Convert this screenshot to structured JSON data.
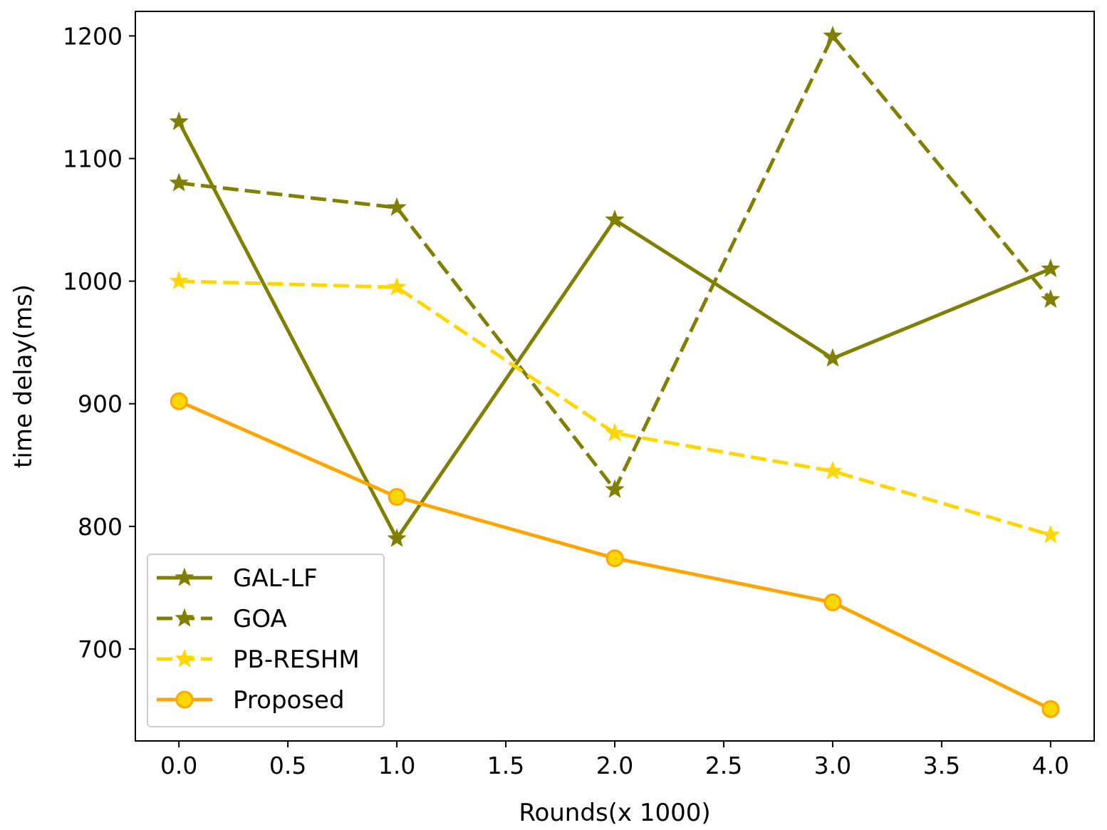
{
  "chart_data": {
    "type": "line",
    "title": "",
    "xlabel": "Rounds(x 1000)",
    "ylabel": "time delay(ms)",
    "xlim": [
      -0.2,
      4.2
    ],
    "ylim": [
      625,
      1220
    ],
    "xticks": [
      0.0,
      0.5,
      1.0,
      1.5,
      2.0,
      2.5,
      3.0,
      3.5,
      4.0
    ],
    "xtick_labels": [
      "0.0",
      "0.5",
      "1.0",
      "1.5",
      "2.0",
      "2.5",
      "3.0",
      "3.5",
      "4.0"
    ],
    "yticks": [
      700,
      800,
      900,
      1000,
      1100,
      1200
    ],
    "ytick_labels": [
      "700",
      "800",
      "900",
      "1000",
      "1100",
      "1200"
    ],
    "grid": false,
    "legend_position": "lower-left",
    "x": [
      0,
      1,
      2,
      3,
      4
    ],
    "series": [
      {
        "name": "GAL-LF",
        "values": [
          1130,
          790,
          1050,
          937,
          1010
        ],
        "color": "#808000",
        "linestyle": "solid",
        "marker": "star"
      },
      {
        "name": "GOA",
        "values": [
          1080,
          1060,
          830,
          1200,
          985
        ],
        "color": "#808000",
        "linestyle": "dashed",
        "marker": "star"
      },
      {
        "name": "PB-RESHM",
        "values": [
          1000,
          995,
          876,
          845,
          793
        ],
        "color": "#FFD700",
        "linestyle": "dashed",
        "marker": "star"
      },
      {
        "name": "Proposed",
        "values": [
          902,
          824,
          774,
          738,
          651
        ],
        "color": "#FFA500",
        "linestyle": "solid",
        "marker": "circle",
        "marker_fill": "#FFD700"
      }
    ]
  }
}
